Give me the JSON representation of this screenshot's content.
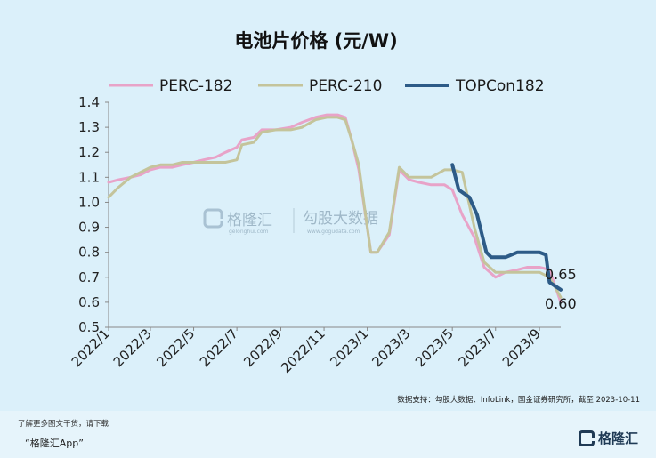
{
  "chart_data": {
    "type": "line",
    "title": "电池片价格 (元/W)",
    "ylim": [
      0.5,
      1.4
    ],
    "y_ticks": [
      "1.4",
      "1.3",
      "1.2",
      "1.1",
      "1.0",
      "0.9",
      "0.8",
      "0.7",
      "0.6",
      "0.5"
    ],
    "x_ticks": [
      "2022/1",
      "2022/3",
      "2022/5",
      "2022/7",
      "2022/9",
      "2022/11",
      "2023/1",
      "2023/3",
      "2023/5",
      "2023/7",
      "2023/9"
    ],
    "grid": false,
    "legend_position": "top",
    "series": [
      {
        "name": "PERC-182",
        "color": "#e8a3c8",
        "points": [
          [
            "2022-01-01",
            1.08
          ],
          [
            "2022-01-15",
            1.09
          ],
          [
            "2022-02-01",
            1.1
          ],
          [
            "2022-02-15",
            1.11
          ],
          [
            "2022-03-01",
            1.13
          ],
          [
            "2022-03-15",
            1.14
          ],
          [
            "2022-04-01",
            1.14
          ],
          [
            "2022-04-15",
            1.15
          ],
          [
            "2022-05-01",
            1.16
          ],
          [
            "2022-05-15",
            1.17
          ],
          [
            "2022-06-01",
            1.18
          ],
          [
            "2022-06-15",
            1.2
          ],
          [
            "2022-07-01",
            1.22
          ],
          [
            "2022-07-08",
            1.25
          ],
          [
            "2022-07-25",
            1.26
          ],
          [
            "2022-08-05",
            1.29
          ],
          [
            "2022-08-25",
            1.29
          ],
          [
            "2022-09-15",
            1.3
          ],
          [
            "2022-10-01",
            1.32
          ],
          [
            "2022-10-20",
            1.34
          ],
          [
            "2022-11-05",
            1.35
          ],
          [
            "2022-11-20",
            1.35
          ],
          [
            "2022-12-01",
            1.34
          ],
          [
            "2022-12-10",
            1.25
          ],
          [
            "2022-12-20",
            1.13
          ],
          [
            "2023-01-01",
            0.9
          ],
          [
            "2023-01-06",
            0.8
          ],
          [
            "2023-01-15",
            0.8
          ],
          [
            "2023-02-01",
            0.87
          ],
          [
            "2023-02-15",
            1.13
          ],
          [
            "2023-03-01",
            1.09
          ],
          [
            "2023-03-15",
            1.08
          ],
          [
            "2023-04-01",
            1.07
          ],
          [
            "2023-04-20",
            1.07
          ],
          [
            "2023-05-01",
            1.05
          ],
          [
            "2023-05-15",
            0.95
          ],
          [
            "2023-06-01",
            0.86
          ],
          [
            "2023-06-15",
            0.74
          ],
          [
            "2023-07-01",
            0.7
          ],
          [
            "2023-07-15",
            0.72
          ],
          [
            "2023-08-01",
            0.73
          ],
          [
            "2023-08-15",
            0.74
          ],
          [
            "2023-09-01",
            0.74
          ],
          [
            "2023-09-15",
            0.73
          ],
          [
            "2023-10-01",
            0.6
          ]
        ]
      },
      {
        "name": "PERC-210",
        "color": "#c4c49b",
        "points": [
          [
            "2022-01-01",
            1.02
          ],
          [
            "2022-01-15",
            1.06
          ],
          [
            "2022-02-01",
            1.1
          ],
          [
            "2022-02-15",
            1.12
          ],
          [
            "2022-03-01",
            1.14
          ],
          [
            "2022-03-15",
            1.15
          ],
          [
            "2022-04-01",
            1.15
          ],
          [
            "2022-04-15",
            1.16
          ],
          [
            "2022-05-01",
            1.16
          ],
          [
            "2022-05-15",
            1.16
          ],
          [
            "2022-06-01",
            1.16
          ],
          [
            "2022-06-15",
            1.16
          ],
          [
            "2022-07-01",
            1.17
          ],
          [
            "2022-07-08",
            1.23
          ],
          [
            "2022-07-25",
            1.24
          ],
          [
            "2022-08-05",
            1.28
          ],
          [
            "2022-08-25",
            1.29
          ],
          [
            "2022-09-15",
            1.29
          ],
          [
            "2022-10-01",
            1.3
          ],
          [
            "2022-10-20",
            1.33
          ],
          [
            "2022-11-05",
            1.34
          ],
          [
            "2022-11-20",
            1.34
          ],
          [
            "2022-12-01",
            1.33
          ],
          [
            "2022-12-10",
            1.25
          ],
          [
            "2022-12-20",
            1.15
          ],
          [
            "2023-01-01",
            0.9
          ],
          [
            "2023-01-06",
            0.8
          ],
          [
            "2023-01-15",
            0.8
          ],
          [
            "2023-02-01",
            0.88
          ],
          [
            "2023-02-15",
            1.14
          ],
          [
            "2023-03-01",
            1.1
          ],
          [
            "2023-03-15",
            1.1
          ],
          [
            "2023-04-01",
            1.1
          ],
          [
            "2023-04-20",
            1.13
          ],
          [
            "2023-05-01",
            1.13
          ],
          [
            "2023-05-15",
            1.12
          ],
          [
            "2023-06-01",
            0.9
          ],
          [
            "2023-06-15",
            0.76
          ],
          [
            "2023-07-01",
            0.72
          ],
          [
            "2023-07-15",
            0.72
          ],
          [
            "2023-08-01",
            0.72
          ],
          [
            "2023-08-15",
            0.72
          ],
          [
            "2023-09-01",
            0.72
          ],
          [
            "2023-09-15",
            0.7
          ],
          [
            "2023-10-01",
            0.62
          ]
        ]
      },
      {
        "name": "TOPCon182",
        "color": "#2d5b87",
        "points": [
          [
            "2023-05-01",
            1.15
          ],
          [
            "2023-05-10",
            1.05
          ],
          [
            "2023-05-25",
            1.02
          ],
          [
            "2023-06-05",
            0.95
          ],
          [
            "2023-06-18",
            0.8
          ],
          [
            "2023-06-25",
            0.78
          ],
          [
            "2023-07-15",
            0.78
          ],
          [
            "2023-08-01",
            0.8
          ],
          [
            "2023-08-15",
            0.8
          ],
          [
            "2023-09-01",
            0.8
          ],
          [
            "2023-09-10",
            0.79
          ],
          [
            "2023-09-15",
            0.68
          ],
          [
            "2023-10-01",
            0.65
          ]
        ]
      }
    ],
    "annotations": [
      "0.65",
      "0.60"
    ]
  },
  "watermark": {
    "brand": "格隆汇",
    "brand_url": "gelonghui.com",
    "partner": "勾股大数据",
    "partner_url": "www.gogudata.com"
  },
  "source_note": "数据支持：勾股大数据、InfoLink，国金证券研究所，截至 2023-10-11",
  "footer": {
    "cta": "了解更多图文干货，请下载",
    "app_name": "“格隆汇App”",
    "logo_text": "格隆汇"
  }
}
